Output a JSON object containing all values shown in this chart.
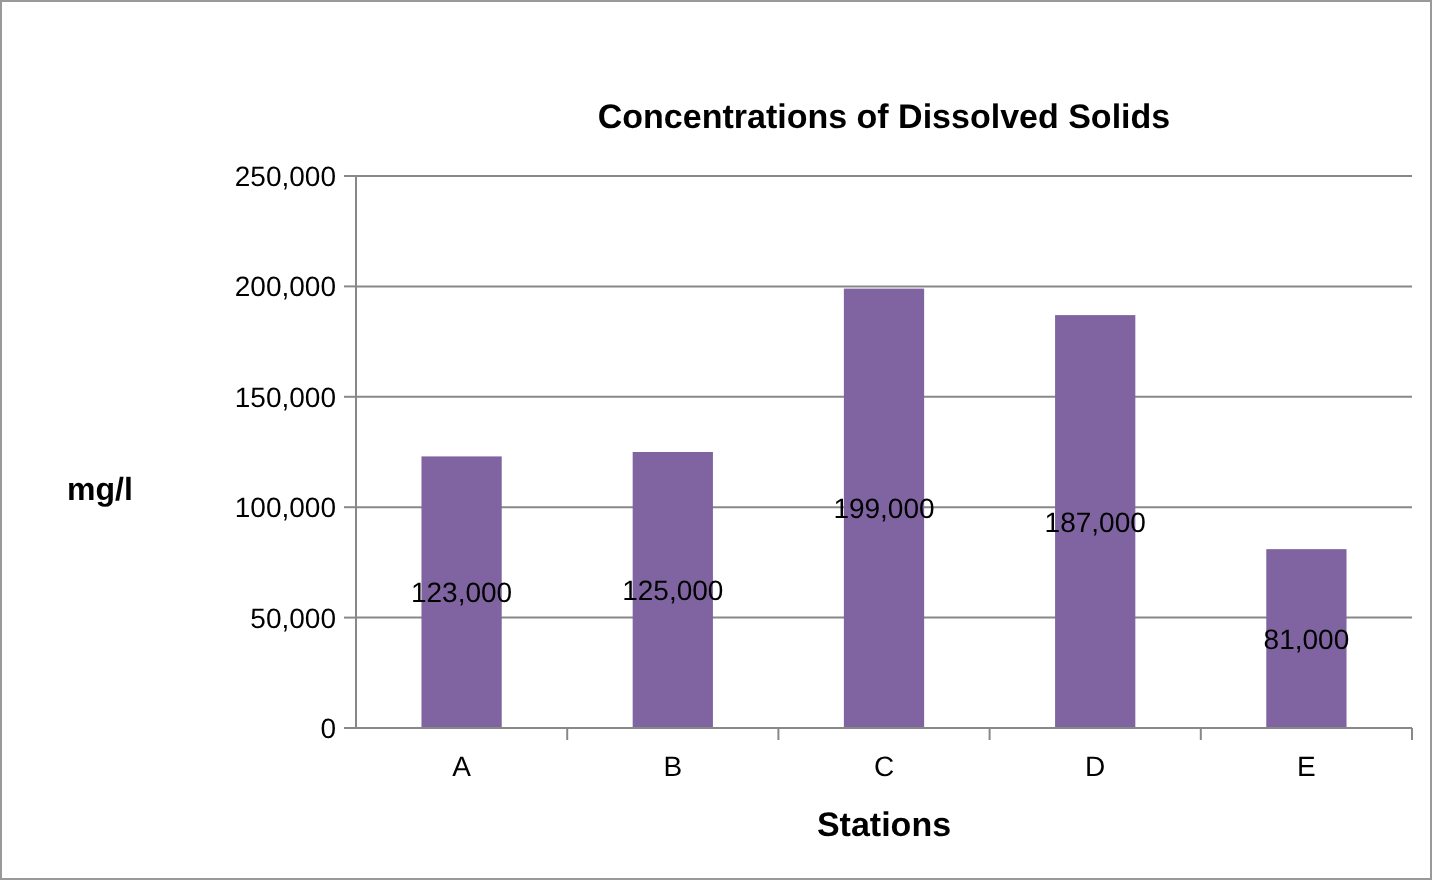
{
  "chart_data": {
    "type": "bar",
    "title": "Concentrations of Dissolved Solids",
    "xlabel": "Stations",
    "ylabel": "mg/l",
    "categories": [
      "A",
      "B",
      "C",
      "D",
      "E"
    ],
    "values": [
      123000,
      125000,
      199000,
      187000,
      81000
    ],
    "value_labels": [
      "123,000",
      "125,000",
      "199,000",
      "187,000",
      "81,000"
    ],
    "color": "#8064a2",
    "ylim": [
      0,
      250000
    ],
    "yticks": [
      {
        "value": 0,
        "label": "0"
      },
      {
        "value": 50000,
        "label": "50,000"
      },
      {
        "value": 100000,
        "label": "100,000"
      },
      {
        "value": 150000,
        "label": "150,000"
      },
      {
        "value": 200000,
        "label": "200,000"
      },
      {
        "value": 250000,
        "label": "250,000"
      }
    ],
    "grid": "y"
  }
}
